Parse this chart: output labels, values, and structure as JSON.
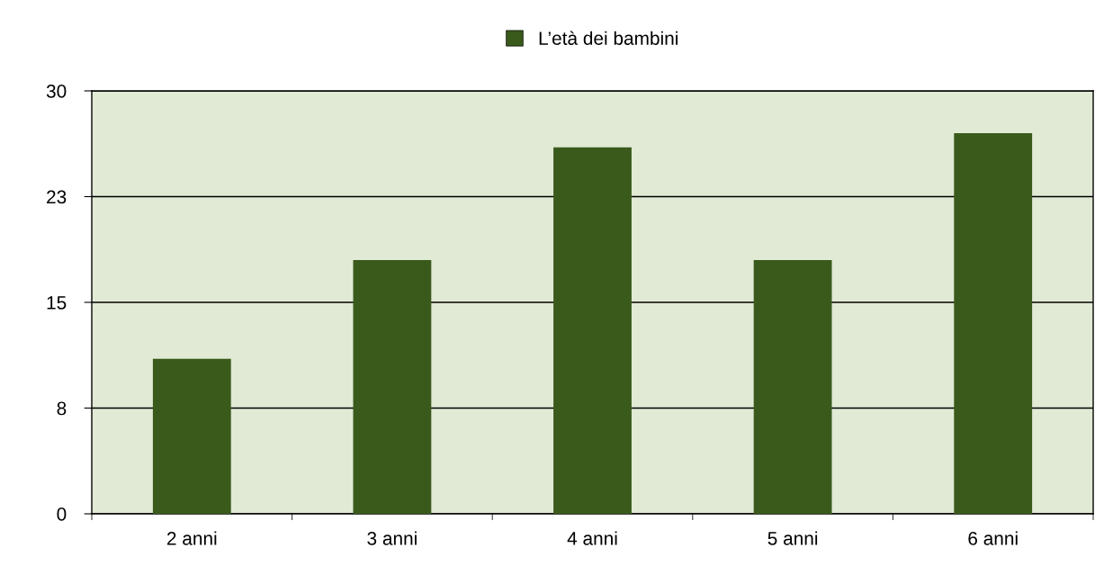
{
  "chart_data": {
    "type": "bar",
    "categories": [
      "2 anni",
      "3 anni",
      "4 anni",
      "5 anni",
      "6 anni"
    ],
    "series": [
      {
        "name": "L’età dei bambini",
        "color": "#3a5a1c",
        "values": [
          11,
          18,
          26,
          18,
          27
        ]
      }
    ],
    "ylim": [
      0,
      30
    ],
    "yticks": [
      0,
      {
        "value": 7.5,
        "label": "8"
      },
      15,
      {
        "value": 22.5,
        "label": "23"
      },
      30
    ],
    "grid": "y",
    "legend": "top"
  }
}
